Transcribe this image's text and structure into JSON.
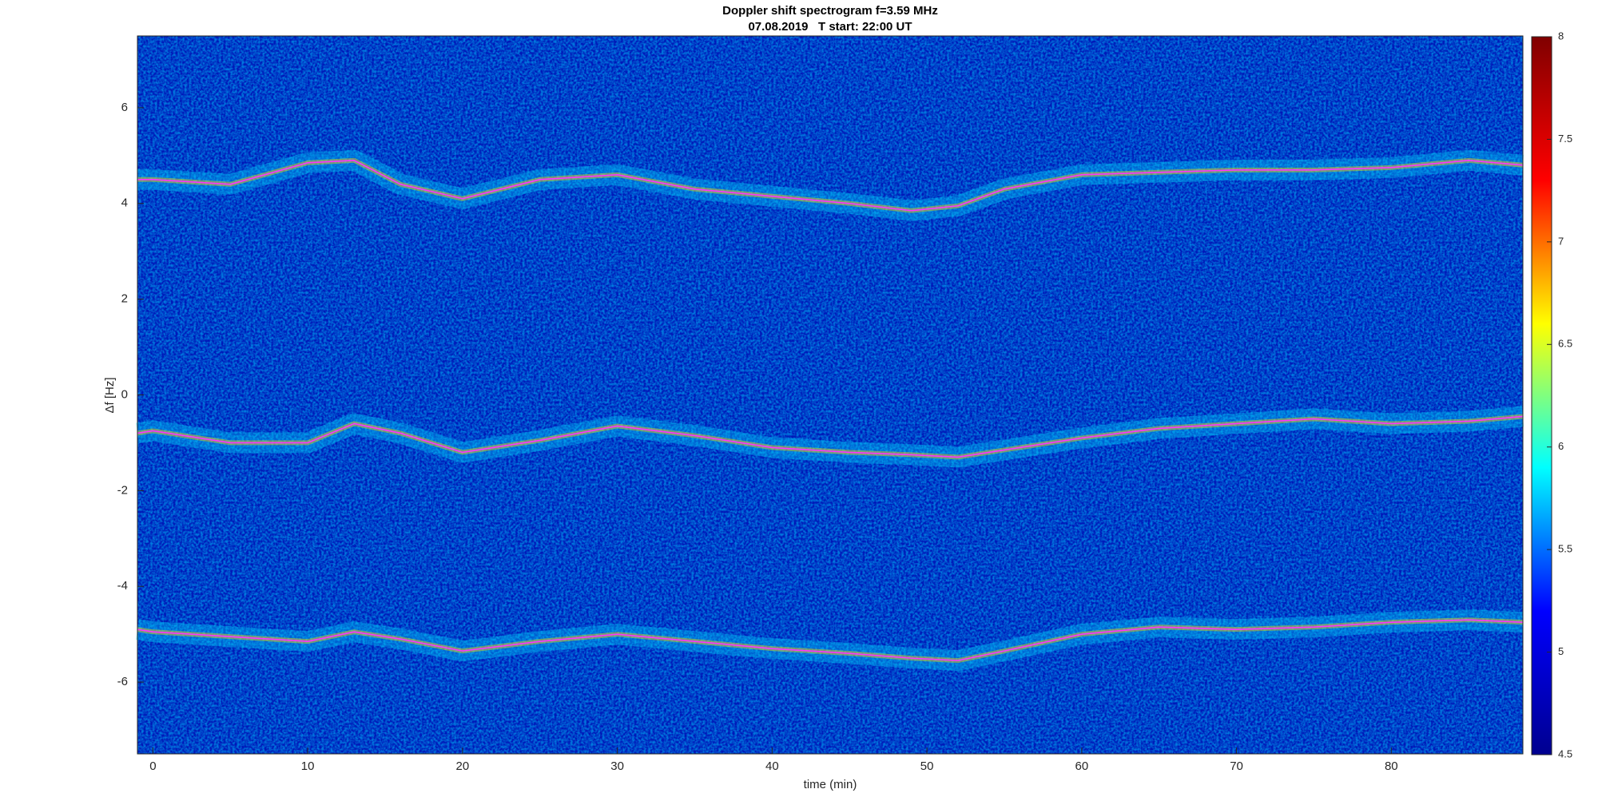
{
  "chart_data": {
    "type": "spectrogram",
    "title": "Doppler shift spectrogram f=3.59 MHz",
    "subtitle": "07.08.2019   T start: 22:00 UT",
    "x_label": "time (min)",
    "y_label": "Δf [Hz]",
    "x": [
      -1,
      0,
      5,
      10,
      13,
      16,
      20,
      25,
      30,
      35,
      40,
      45,
      49,
      52,
      55,
      60,
      65,
      70,
      75,
      80,
      85,
      88.5
    ],
    "series": [
      {
        "color": "#ff33ff",
        "values": [
          4.5,
          4.5,
          4.4,
          4.85,
          4.9,
          4.4,
          4.1,
          4.5,
          4.6,
          4.3,
          4.15,
          4.0,
          3.85,
          3.95,
          4.3,
          4.6,
          4.65,
          4.7,
          4.7,
          4.75,
          4.9,
          4.8
        ]
      },
      {
        "color": "#ff33ff",
        "values": [
          -0.8,
          -0.75,
          -1.0,
          -1.0,
          -0.6,
          -0.8,
          -1.2,
          -0.95,
          -0.65,
          -0.85,
          -1.1,
          -1.2,
          -1.25,
          -1.3,
          -1.15,
          -0.9,
          -0.7,
          -0.6,
          -0.5,
          -0.6,
          -0.55,
          -0.45
        ]
      },
      {
        "color": "#ff33ff",
        "values": [
          -4.9,
          -4.95,
          -5.05,
          -5.15,
          -4.95,
          -5.1,
          -5.35,
          -5.15,
          -5.0,
          -5.15,
          -5.3,
          -5.4,
          -5.5,
          -5.55,
          -5.35,
          -5.0,
          -4.85,
          -4.9,
          -4.85,
          -4.75,
          -4.7,
          -4.75
        ]
      }
    ],
    "xlim": [
      -1,
      88.5
    ],
    "ylim": [
      -7.5,
      7.5
    ],
    "xticks": [
      0,
      10,
      20,
      30,
      40,
      50,
      60,
      70,
      80
    ],
    "yticks": [
      -6,
      -4,
      -2,
      0,
      2,
      4,
      6
    ],
    "colormap": [
      "#00008f",
      "#0000ff",
      "#00ffff",
      "#ffff00",
      "#ff0000",
      "#800000"
    ],
    "clim": [
      4.5,
      8
    ],
    "cticks": [
      4.5,
      5,
      5.5,
      6,
      6.5,
      7,
      7.5,
      8
    ]
  }
}
